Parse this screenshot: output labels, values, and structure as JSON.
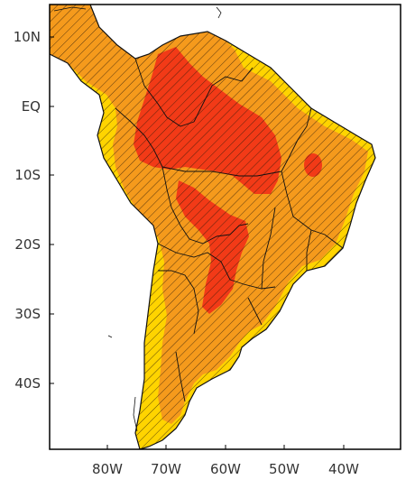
{
  "map": {
    "lat_labels": [
      "10N",
      "EQ",
      "10S",
      "20S",
      "30S",
      "40S"
    ],
    "lon_labels": [
      "80W",
      "70W",
      "60W",
      "50W",
      "40W"
    ],
    "colors": {
      "ocean": "#ffffff",
      "low": "#ffd400",
      "mid": "#f59a1c",
      "high": "#f23a17",
      "hatch": "#2a1a0a",
      "border": "#111111"
    }
  }
}
